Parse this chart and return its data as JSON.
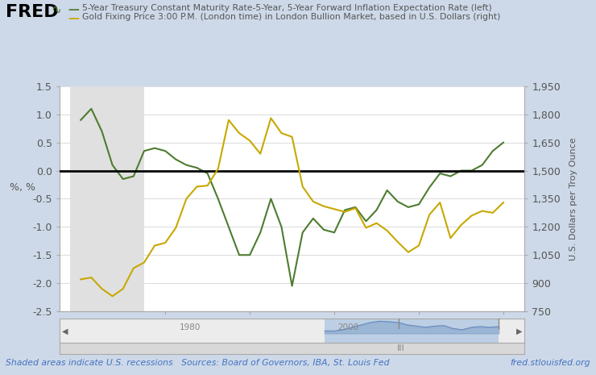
{
  "bg_color": "#cdd9e8",
  "plot_bg_color": "#ffffff",
  "green_color": "#4d7c30",
  "gold_color": "#c8a800",
  "recession_color": "#e0e0e0",
  "left_label": "%, %",
  "right_label": "U.S. Dollars per Troy Ounce",
  "legend1": "5-Year Treasury Constant Maturity Rate-5-Year, 5-Year Forward Inflation Expectation Rate (left)",
  "legend2": "Gold Fixing Price 3:00 P.M. (London time) in London Bullion Market, based in U.S. Dollars (right)",
  "footer_left": "Shaded areas indicate U.S. recessions   Sources: Board of Governors, IBA, St. Louis Fed",
  "footer_right": "fred.stlouisfed.org",
  "ylim_left": [
    -2.5,
    1.5
  ],
  "ylim_right": [
    750,
    1950
  ],
  "yticks_left": [
    -2.5,
    -2.0,
    -1.5,
    -1.0,
    -0.5,
    0.0,
    0.5,
    1.0,
    1.5
  ],
  "yticks_right": [
    750,
    900,
    1050,
    1200,
    1350,
    1500,
    1650,
    1800,
    1950
  ],
  "xlim": [
    2007.5,
    2018.5
  ],
  "xticks": [
    2010,
    2012,
    2014,
    2016,
    2018
  ],
  "recession_start": 2007.75,
  "recession_end": 2009.5,
  "green_x": [
    2008.0,
    2008.25,
    2008.5,
    2008.75,
    2009.0,
    2009.25,
    2009.5,
    2009.75,
    2010.0,
    2010.25,
    2010.5,
    2010.75,
    2011.0,
    2011.25,
    2011.5,
    2011.75,
    2012.0,
    2012.25,
    2012.5,
    2012.75,
    2013.0,
    2013.25,
    2013.5,
    2013.75,
    2014.0,
    2014.25,
    2014.5,
    2014.75,
    2015.0,
    2015.25,
    2015.5,
    2015.75,
    2016.0,
    2016.25,
    2016.5,
    2016.75,
    2017.0,
    2017.25,
    2017.5,
    2017.75,
    2018.0
  ],
  "green_y": [
    0.9,
    1.1,
    0.7,
    0.1,
    -0.15,
    -0.1,
    0.35,
    0.4,
    0.35,
    0.2,
    0.1,
    0.05,
    -0.05,
    -0.5,
    -1.0,
    -1.5,
    -1.5,
    -1.1,
    -0.5,
    -1.0,
    -2.05,
    -1.1,
    -0.85,
    -1.05,
    -1.1,
    -0.7,
    -0.65,
    -0.9,
    -0.7,
    -0.35,
    -0.55,
    -0.65,
    -0.6,
    -0.3,
    -0.05,
    -0.1,
    0.0,
    0.0,
    0.1,
    0.35,
    0.5
  ],
  "gold_x": [
    2008.0,
    2008.25,
    2008.5,
    2008.75,
    2009.0,
    2009.25,
    2009.5,
    2009.75,
    2010.0,
    2010.25,
    2010.5,
    2010.75,
    2011.0,
    2011.25,
    2011.5,
    2011.75,
    2012.0,
    2012.25,
    2012.5,
    2012.75,
    2013.0,
    2013.25,
    2013.5,
    2013.75,
    2014.0,
    2014.25,
    2014.5,
    2014.75,
    2015.0,
    2015.25,
    2015.5,
    2015.75,
    2016.0,
    2016.25,
    2016.5,
    2016.75,
    2017.0,
    2017.25,
    2017.5,
    2017.75,
    2018.0
  ],
  "gold_y": [
    920,
    930,
    870,
    830,
    870,
    980,
    1010,
    1100,
    1115,
    1195,
    1350,
    1415,
    1420,
    1510,
    1770,
    1700,
    1660,
    1590,
    1780,
    1700,
    1680,
    1415,
    1335,
    1310,
    1295,
    1280,
    1300,
    1195,
    1220,
    1180,
    1120,
    1065,
    1100,
    1265,
    1330,
    1140,
    1210,
    1260,
    1285,
    1275,
    1330
  ]
}
